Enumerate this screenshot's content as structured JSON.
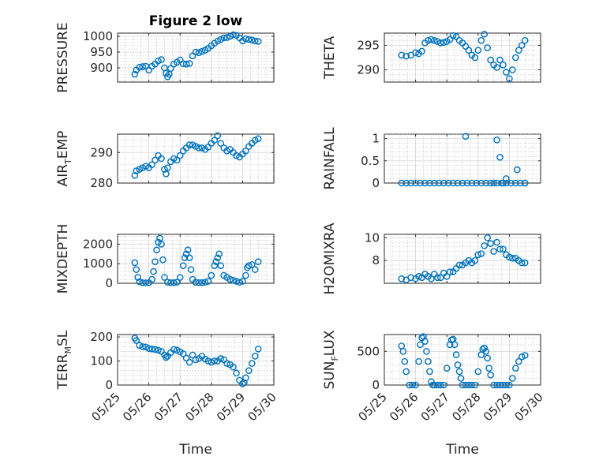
{
  "figure": {
    "title": "Figure 2 low",
    "xlabel": "Time",
    "xtick_labels": [
      "05/25",
      "05/26",
      "05/27",
      "05/28",
      "05/29",
      "05/30"
    ],
    "marker_color": "#0072bd"
  },
  "chart_data": [
    {
      "type": "scatter",
      "ylabel": "PRESSURE",
      "yticks": [
        900,
        950,
        1000
      ],
      "ylim": [
        855,
        1010
      ],
      "x": [
        25.55,
        25.6,
        25.7,
        25.8,
        25.9,
        26.0,
        26.1,
        26.2,
        26.3,
        26.4,
        26.5,
        26.55,
        26.6,
        26.65,
        26.7,
        26.8,
        26.9,
        27.0,
        27.1,
        27.2,
        27.3,
        27.4,
        27.5,
        27.6,
        27.7,
        27.8,
        27.9,
        28.0,
        28.1,
        28.2,
        28.3,
        28.4,
        28.5,
        28.6,
        28.7,
        28.8,
        28.9,
        29.0,
        29.1,
        29.2,
        29.3,
        29.4,
        29.5
      ],
      "y": [
        880,
        893,
        902,
        904,
        905,
        893,
        905,
        912,
        922,
        926,
        900,
        883,
        872,
        880,
        898,
        912,
        918,
        925,
        913,
        912,
        914,
        938,
        950,
        948,
        952,
        956,
        962,
        970,
        978,
        985,
        990,
        995,
        996,
        1000,
        1005,
        1003,
        995,
        985,
        992,
        990,
        988,
        985,
        984
      ]
    },
    {
      "type": "scatter",
      "ylabel": "THETA",
      "yticks": [
        290,
        295
      ],
      "ylim": [
        287.5,
        297.5
      ],
      "x": [
        25.55,
        25.7,
        25.85,
        26.0,
        26.1,
        26.2,
        26.3,
        26.4,
        26.5,
        26.6,
        26.7,
        26.8,
        26.9,
        27.0,
        27.1,
        27.2,
        27.3,
        27.4,
        27.5,
        27.6,
        27.7,
        27.8,
        27.9,
        28.0,
        28.1,
        28.2,
        28.3,
        28.4,
        28.5,
        28.6,
        28.7,
        28.8,
        28.9,
        29.0,
        29.1,
        29.2,
        29.3,
        29.4,
        29.5
      ],
      "y": [
        293,
        292.8,
        293,
        293.5,
        293.3,
        293.8,
        295.5,
        296,
        296.2,
        296,
        295.8,
        295.5,
        295.6,
        295.8,
        296.2,
        297,
        296.8,
        296,
        295.5,
        294.8,
        294,
        293,
        292.5,
        294,
        296,
        297.3,
        294.5,
        292,
        291,
        290.5,
        292,
        291,
        289.5,
        288.2,
        290,
        292.5,
        294,
        295,
        296
      ]
    },
    {
      "type": "scatter",
      "ylabel": "AIR",
      "ylabel_sub": "T",
      "ylabel_rest": "EMP",
      "yticks": [
        280,
        290
      ],
      "ylim": [
        280,
        296
      ],
      "x": [
        25.55,
        25.6,
        25.7,
        25.8,
        25.9,
        26.0,
        26.1,
        26.2,
        26.3,
        26.4,
        26.5,
        26.55,
        26.6,
        26.7,
        26.8,
        26.9,
        27.0,
        27.1,
        27.2,
        27.3,
        27.4,
        27.5,
        27.6,
        27.7,
        27.8,
        27.9,
        28.0,
        28.1,
        28.2,
        28.3,
        28.4,
        28.5,
        28.6,
        28.7,
        28.8,
        28.9,
        29.0,
        29.1,
        29.2,
        29.3,
        29.4,
        29.5
      ],
      "y": [
        282.5,
        284,
        284.5,
        285,
        285.5,
        285,
        286,
        287.5,
        289,
        288,
        284.5,
        283,
        285,
        287,
        288,
        287.5,
        289,
        290.5,
        291.5,
        292.5,
        292.5,
        292,
        291.5,
        291.5,
        291,
        291.8,
        293,
        294,
        295.5,
        293,
        291.5,
        290.5,
        291,
        290,
        289,
        288.5,
        289.5,
        290.5,
        292,
        293,
        294,
        294.5
      ]
    },
    {
      "type": "scatter",
      "ylabel": "RAINFALL",
      "yticks": [
        0,
        0.5,
        1
      ],
      "yticklabels": [
        "0",
        "0.5",
        "1"
      ],
      "ylim": [
        0,
        1.1
      ],
      "x": [
        25.55,
        25.7,
        25.85,
        26.0,
        26.15,
        26.3,
        26.45,
        26.6,
        26.75,
        26.9,
        27.05,
        27.2,
        27.35,
        27.5,
        27.65,
        27.8,
        27.95,
        28.1,
        28.25,
        28.4,
        28.5,
        28.6,
        28.75,
        28.9,
        29.05,
        29.2,
        29.35,
        29.5,
        27.6,
        28.6,
        28.7,
        28.8,
        28.9,
        29.25,
        29.5
      ],
      "y": [
        0,
        0,
        0,
        0,
        0,
        0,
        0,
        0,
        0,
        0,
        0,
        0,
        0,
        0,
        0,
        0,
        0,
        0,
        0,
        0,
        0,
        0,
        0,
        0,
        0,
        0,
        0,
        0,
        1.05,
        0.97,
        0.58,
        0,
        0.1,
        0.3,
        0
      ]
    },
    {
      "type": "scatter",
      "ylabel": "MIXDEPTH",
      "yticks": [
        0,
        1000,
        2000
      ],
      "ylim": [
        0,
        2500
      ],
      "x": [
        25.55,
        25.6,
        25.65,
        25.7,
        25.8,
        25.9,
        26.0,
        26.1,
        26.15,
        26.2,
        26.25,
        26.3,
        26.35,
        26.4,
        26.45,
        26.5,
        26.6,
        26.7,
        26.8,
        26.9,
        27.0,
        27.1,
        27.15,
        27.2,
        27.25,
        27.3,
        27.35,
        27.4,
        27.5,
        27.6,
        27.7,
        27.8,
        27.9,
        28.0,
        28.1,
        28.15,
        28.2,
        28.25,
        28.3,
        28.4,
        28.5,
        28.6,
        28.7,
        28.8,
        28.9,
        29.0,
        29.1,
        29.15,
        29.2,
        29.3,
        29.4,
        29.5
      ],
      "y": [
        1050,
        700,
        300,
        80,
        30,
        20,
        30,
        200,
        600,
        1100,
        1700,
        2100,
        2300,
        2000,
        1200,
        300,
        50,
        30,
        30,
        50,
        300,
        900,
        1300,
        1500,
        1700,
        1300,
        700,
        200,
        50,
        30,
        30,
        50,
        100,
        400,
        900,
        1100,
        1300,
        1500,
        900,
        400,
        300,
        200,
        150,
        100,
        50,
        100,
        400,
        800,
        900,
        950,
        700,
        1100
      ]
    },
    {
      "type": "scatter",
      "ylabel": "H2OMIXRA",
      "yticks": [
        8,
        10
      ],
      "ylim": [
        6,
        10.3
      ],
      "x": [
        25.55,
        25.7,
        25.85,
        26.0,
        26.1,
        26.2,
        26.3,
        26.4,
        26.5,
        26.6,
        26.7,
        26.8,
        26.9,
        27.0,
        27.1,
        27.2,
        27.3,
        27.4,
        27.5,
        27.6,
        27.7,
        27.8,
        27.9,
        28.0,
        28.1,
        28.2,
        28.3,
        28.4,
        28.5,
        28.6,
        28.7,
        28.8,
        28.9,
        29.0,
        29.1,
        29.2,
        29.3,
        29.4,
        29.5
      ],
      "y": [
        6.4,
        6.3,
        6.5,
        6.4,
        6.6,
        6.5,
        6.8,
        6.6,
        6.4,
        6.8,
        6.5,
        6.5,
        6.9,
        6.6,
        7.0,
        7.0,
        7.3,
        7.6,
        7.6,
        7.8,
        8.0,
        7.8,
        8.0,
        8.5,
        8.6,
        9.3,
        10.0,
        9.5,
        8.8,
        9.6,
        9.0,
        9.0,
        8.5,
        8.3,
        8.2,
        8.2,
        8.0,
        7.8,
        7.8
      ]
    },
    {
      "type": "scatter",
      "ylabel": "TERR",
      "ylabel_sub": "M",
      "ylabel_rest": "SL",
      "yticks": [
        0,
        100,
        200
      ],
      "ylim": [
        0,
        210
      ],
      "x": [
        25.55,
        25.6,
        25.7,
        25.8,
        25.9,
        26.0,
        26.1,
        26.2,
        26.3,
        26.4,
        26.5,
        26.55,
        26.6,
        26.7,
        26.8,
        26.9,
        27.0,
        27.1,
        27.2,
        27.3,
        27.4,
        27.5,
        27.6,
        27.7,
        27.8,
        27.9,
        28.0,
        28.1,
        28.2,
        28.3,
        28.4,
        28.5,
        28.6,
        28.7,
        28.8,
        28.9,
        29.0,
        29.05,
        29.1,
        29.2,
        29.3,
        29.4,
        29.5
      ],
      "y": [
        195,
        185,
        165,
        160,
        158,
        152,
        150,
        148,
        145,
        140,
        125,
        115,
        120,
        135,
        148,
        145,
        138,
        130,
        112,
        95,
        125,
        105,
        110,
        120,
        108,
        100,
        95,
        100,
        100,
        110,
        105,
        90,
        85,
        75,
        50,
        20,
        5,
        10,
        30,
        60,
        90,
        120,
        150
      ]
    },
    {
      "type": "scatter",
      "ylabel": "SUN",
      "ylabel_sub": "F",
      "ylabel_rest": "LUX",
      "yticks": [
        0,
        500
      ],
      "ylim": [
        0,
        750
      ],
      "x": [
        25.55,
        25.6,
        25.65,
        25.7,
        25.8,
        25.9,
        26.0,
        26.1,
        26.15,
        26.2,
        26.25,
        26.3,
        26.35,
        26.4,
        26.45,
        26.5,
        26.55,
        26.6,
        26.7,
        26.8,
        26.9,
        27.0,
        27.1,
        27.15,
        27.2,
        27.25,
        27.3,
        27.35,
        27.4,
        27.45,
        27.5,
        27.6,
        27.7,
        27.8,
        27.9,
        28.0,
        28.1,
        28.15,
        28.2,
        28.25,
        28.3,
        28.35,
        28.4,
        28.5,
        28.6,
        28.7,
        28.8,
        28.9,
        29.0,
        29.1,
        29.2,
        29.3,
        29.4,
        29.5
      ],
      "y": [
        580,
        500,
        350,
        200,
        0,
        0,
        0,
        350,
        600,
        700,
        720,
        650,
        500,
        350,
        200,
        50,
        0,
        0,
        0,
        0,
        0,
        250,
        600,
        670,
        680,
        600,
        450,
        300,
        200,
        100,
        0,
        0,
        0,
        0,
        0,
        200,
        450,
        530,
        550,
        500,
        400,
        250,
        150,
        0,
        0,
        0,
        0,
        0,
        0,
        100,
        250,
        350,
        420,
        440
      ]
    }
  ]
}
